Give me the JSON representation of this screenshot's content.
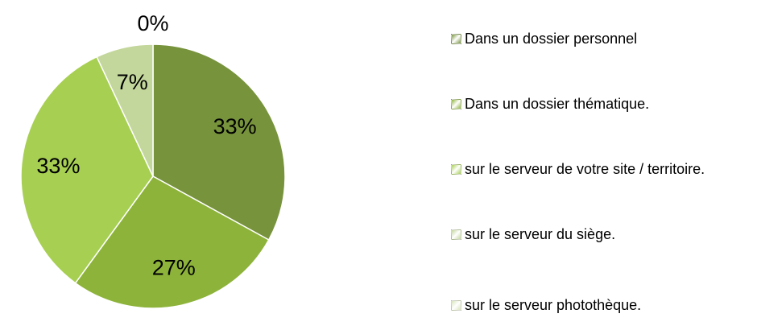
{
  "chart_data": {
    "type": "pie",
    "categories": [
      "Dans un dossier personnel",
      "Dans un dossier thématique.",
      "sur le serveur de votre site / territoire.",
      "sur le serveur du siège.",
      "sur le serveur photothèque."
    ],
    "values": [
      33,
      27,
      33,
      7,
      0
    ],
    "value_labels": [
      "33%",
      "27%",
      "33%",
      "7%",
      "0%"
    ],
    "colors": [
      "#77933c",
      "#8db33a",
      "#a7cf52",
      "#c3d69b",
      "#d8e4bc"
    ],
    "legend": "right"
  }
}
